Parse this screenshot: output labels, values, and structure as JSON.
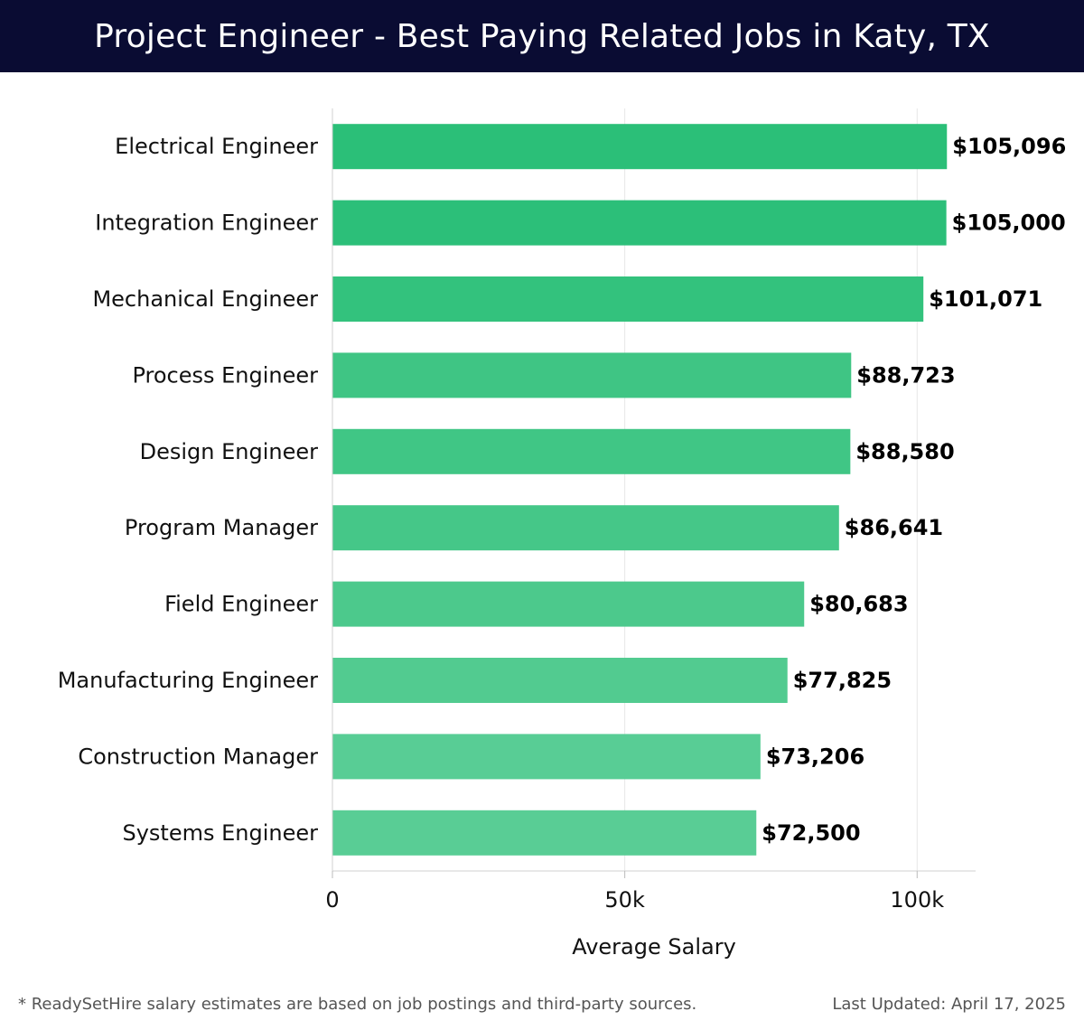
{
  "header": {
    "title": "Project Engineer - Best Paying Related Jobs in Katy, TX"
  },
  "chart_data": {
    "type": "bar",
    "orientation": "horizontal",
    "title": "Project Engineer - Best Paying Related Jobs in Katy, TX",
    "xlabel": "Average Salary",
    "ylabel": "",
    "xlim": [
      0,
      110000
    ],
    "x_ticks": [
      {
        "value": 0,
        "label": "0"
      },
      {
        "value": 50000,
        "label": "50k"
      },
      {
        "value": 100000,
        "label": "100k"
      }
    ],
    "grid": "vertical",
    "categories": [
      "Electrical Engineer",
      "Integration Engineer",
      "Mechanical Engineer",
      "Process Engineer",
      "Design Engineer",
      "Program Manager",
      "Field Engineer",
      "Manufacturing Engineer",
      "Construction Manager",
      "Systems Engineer"
    ],
    "values": [
      105096,
      105000,
      101071,
      88723,
      88580,
      86641,
      80683,
      77825,
      73206,
      72500
    ],
    "value_labels": [
      "$105,096",
      "$105,000",
      "$101,071",
      "$88,723",
      "$88,580",
      "$86,641",
      "$80,683",
      "$77,825",
      "$73,206",
      "$72,500"
    ],
    "bar_colors": [
      "#2bbf78",
      "#2cbf79",
      "#33c27d",
      "#3fc584",
      "#40c685",
      "#45c788",
      "#4cc98c",
      "#52cb90",
      "#58cd95",
      "#59cd95"
    ]
  },
  "footer": {
    "note": "* ReadySetHire salary estimates are based on job postings and third-party sources.",
    "updated": "Last Updated: April 17, 2025"
  }
}
